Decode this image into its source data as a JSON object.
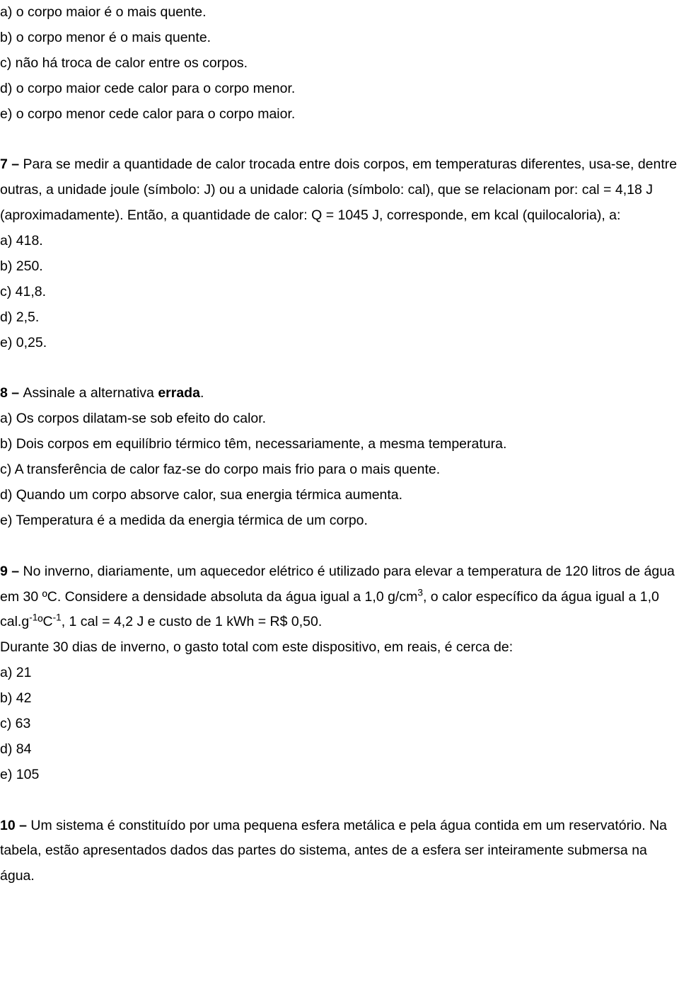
{
  "q6_tail": {
    "a": "a) o corpo maior é o mais quente.",
    "b": "b) o corpo menor é o mais quente.",
    "c": "c) não há troca de calor entre os corpos.",
    "d": "d) o corpo maior cede calor para o corpo menor.",
    "e": "e) o corpo menor cede calor para o corpo maior."
  },
  "q7": {
    "num": "7 – ",
    "stem1": "Para se medir a quantidade de calor trocada entre dois corpos, em temperaturas diferentes, usa-se, dentre outras, a unidade joule (símbolo: J) ou a unidade caloria (símbolo: cal), que se relacionam por: cal = 4,18 J (aproximadamente). Então, a quantidade de calor: Q = 1045 J, corresponde, em kcal (quilocaloria), a:",
    "a": "a) 418.",
    "b": "b) 250.",
    "c": "c) 41,8.",
    "d": "d) 2,5.",
    "e": "e) 0,25."
  },
  "q8": {
    "num": "8 – ",
    "stem_pre": "Assinale a alternativa ",
    "stem_bold": "errada",
    "stem_post": ".",
    "a": "a) Os corpos dilatam-se sob efeito do calor.",
    "b": "b) Dois corpos em equilíbrio térmico têm, necessariamente, a mesma temperatura.",
    "c": "c) A transferência de calor faz-se do corpo mais frio para o mais quente.",
    "d": "d) Quando um corpo absorve calor, sua energia térmica aumenta.",
    "e": "e) Temperatura é a medida da energia térmica de um corpo."
  },
  "q9": {
    "num": "9 – ",
    "stem_p1a": "No inverno, diariamente, um aquecedor elétrico é utilizado para elevar a temperatura de 120 litros de água em 30 ºC. Considere a densidade absoluta da água igual a 1,0 g/cm",
    "sup3": "3",
    "stem_p1b": ", o calor específico da água igual a 1,0 cal.g",
    "sup_neg1a": "-1",
    "stem_degC": "ºC",
    "sup_neg1b": "-1",
    "stem_p1c": ", 1 cal = 4,2 J e custo de 1 kWh = R$ 0,50.",
    "stem_p2": "Durante 30 dias de inverno, o gasto total com este dispositivo, em reais, é cerca de:",
    "a": "a) 21",
    "b": "b) 42",
    "c": "c) 63",
    "d": "d) 84",
    "e": "e) 105"
  },
  "q10": {
    "num": "10 – ",
    "stem": "Um sistema é constituído por uma pequena esfera metálica e pela água contida em um reservatório. Na tabela, estão apresentados dados das partes do sistema, antes de a esfera ser inteiramente submersa na água."
  }
}
